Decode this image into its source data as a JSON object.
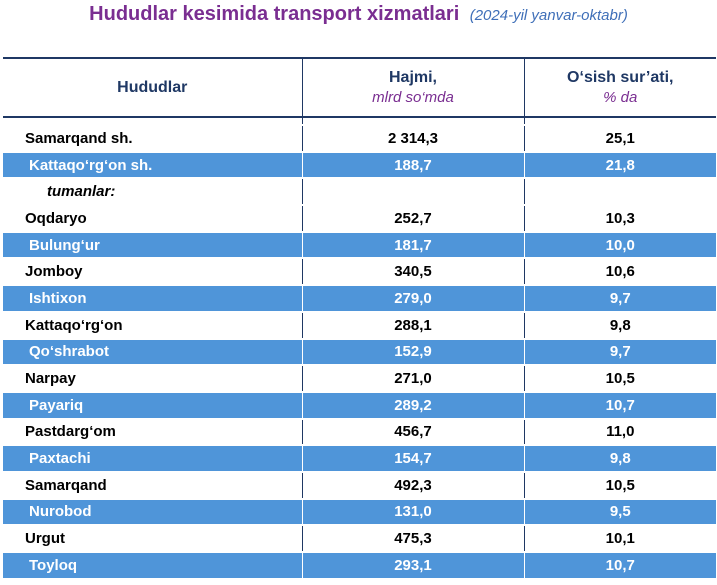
{
  "header": {
    "title": "Hududlar kesimida transport xizmatlari",
    "subtitle": "(2024-yil yanvar-oktabr)"
  },
  "table": {
    "col_region": "Hududlar",
    "col_volume_l1": "Hajmi,",
    "col_volume_l2": "mlrd so‘mda",
    "col_growth_l1": "O‘sish sur’ati,",
    "col_growth_l2": "% da",
    "section_label": "tumanlar:",
    "rows": [
      {
        "name": "Samarqand sh.",
        "volume": "2 314,3",
        "growth": "25,1"
      },
      {
        "name": "Kattaqo‘rg‘on sh.",
        "volume": "188,7",
        "growth": "21,8"
      },
      {
        "name": "Oqdaryo",
        "volume": "252,7",
        "growth": "10,3"
      },
      {
        "name": "Bulung‘ur",
        "volume": "181,7",
        "growth": "10,0"
      },
      {
        "name": "Jomboy",
        "volume": "340,5",
        "growth": "10,6"
      },
      {
        "name": "Ishtixon",
        "volume": "279,0",
        "growth": "9,7"
      },
      {
        "name": "Kattaqo‘rg‘on",
        "volume": "288,1",
        "growth": "9,8"
      },
      {
        "name": "Qo‘shrabot",
        "volume": "152,9",
        "growth": "9,7"
      },
      {
        "name": "Narpay",
        "volume": "271,0",
        "growth": "10,5"
      },
      {
        "name": "Payariq",
        "volume": "289,2",
        "growth": "10,7"
      },
      {
        "name": "Pastdarg‘om",
        "volume": "456,7",
        "growth": "11,0"
      },
      {
        "name": "Paxtachi",
        "volume": "154,7",
        "growth": "9,8"
      },
      {
        "name": "Samarqand",
        "volume": "492,3",
        "growth": "10,5"
      },
      {
        "name": "Nurobod",
        "volume": "131,0",
        "growth": "9,5"
      },
      {
        "name": "Urgut",
        "volume": "475,3",
        "growth": "10,1"
      },
      {
        "name": "Toyloq",
        "volume": "293,1",
        "growth": "10,7"
      }
    ]
  },
  "colors": {
    "title": "#7a2e91",
    "subtitle": "#3f6fb8",
    "band": "#4f95d9",
    "rule": "#1f3864"
  }
}
